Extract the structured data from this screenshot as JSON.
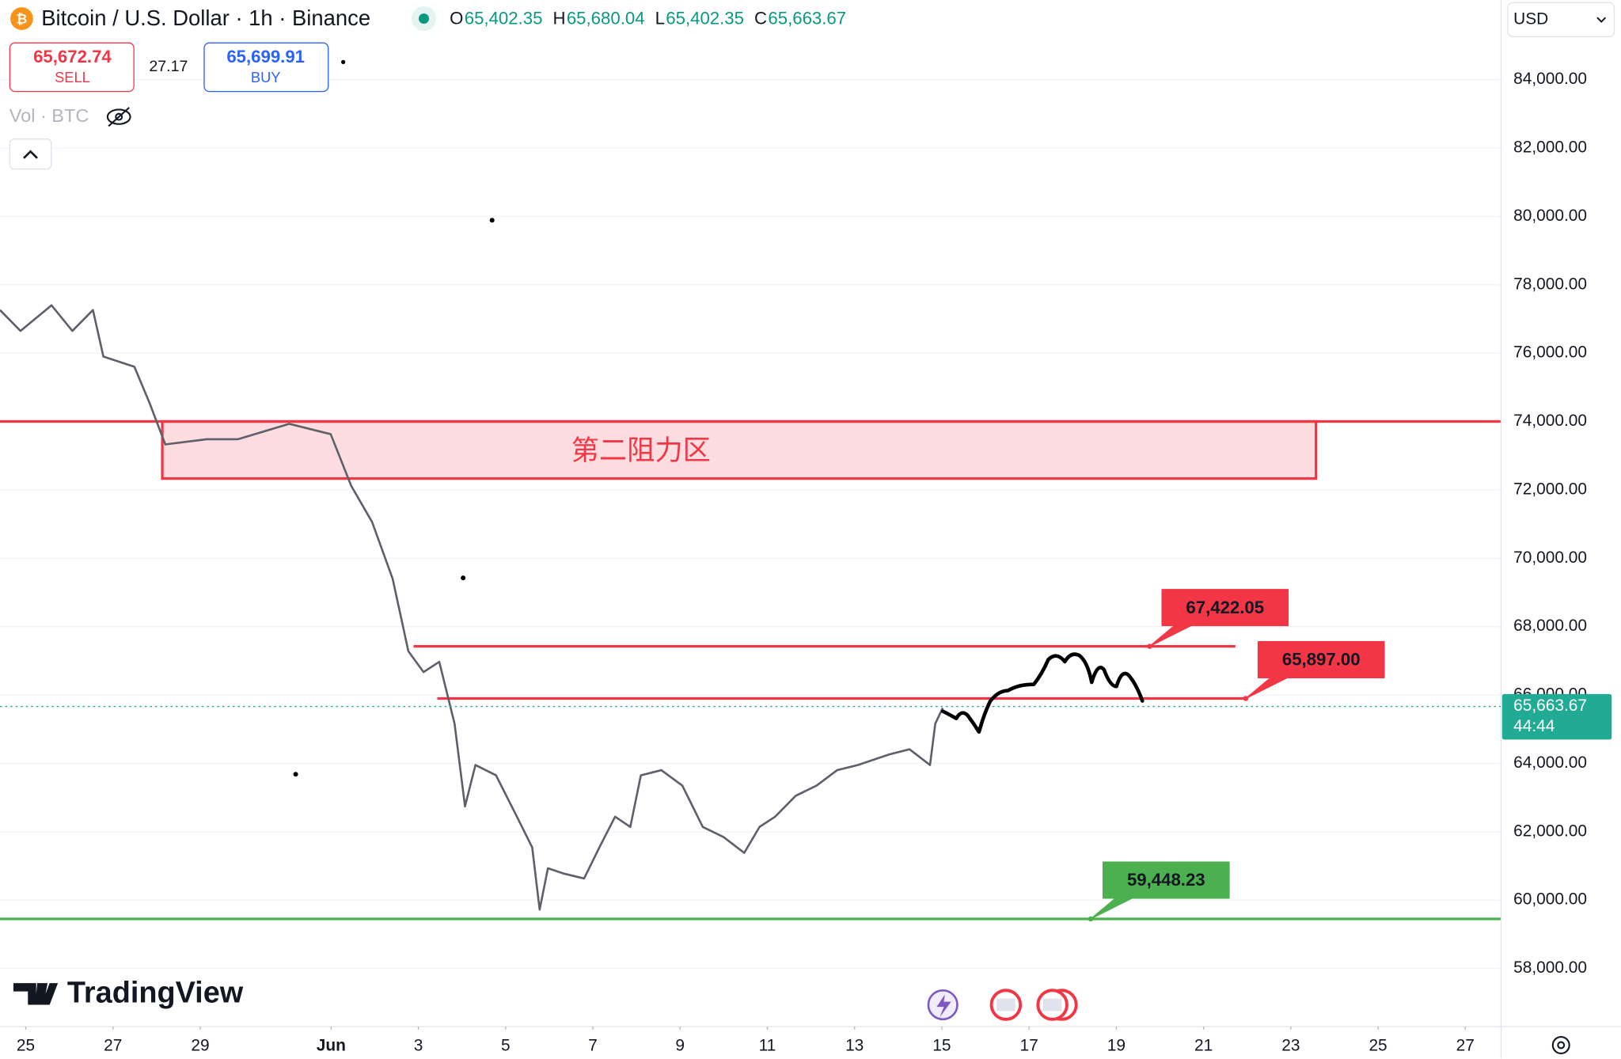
{
  "header": {
    "symbol": "Bitcoin / U.S. Dollar · 1h · Binance",
    "ohlc": [
      {
        "key": "O",
        "value": "65,402.35"
      },
      {
        "key": "H",
        "value": "65,680.04"
      },
      {
        "key": "L",
        "value": "65,402.35"
      },
      {
        "key": "C",
        "value": "65,663.67"
      }
    ],
    "sell_price": "65,672.74",
    "sell": "SELL",
    "spread": "27.17",
    "buy_price": "65,699.91",
    "buy": "BUY",
    "volume": "Vol · BTC",
    "currency": "USD",
    "brand": "TradingView"
  },
  "chart_data": {
    "type": "line",
    "series": [
      {
        "color": "#5d606b",
        "x": [
          -0.59,
          -0.12,
          0.59,
          1.07,
          1.54,
          1.78,
          2.49,
          2.84,
          3.2,
          4.15,
          4.86,
          6.04,
          6.99,
          7.46,
          7.94,
          8.41,
          8.77,
          9.12,
          9.48,
          9.83,
          10.07,
          10.31,
          10.78,
          11.26,
          11.61,
          11.78,
          11.97,
          12.32,
          12.8,
          13.15,
          13.51,
          13.86,
          14.1,
          14.57,
          15.05,
          15.52,
          16,
          16.47,
          16.82,
          17.18,
          17.65,
          18.13,
          18.6,
          19.08,
          19.79,
          20.26,
          20.73,
          20.85,
          21.02
        ],
        "values": [
          77260,
          76650,
          77400,
          76650,
          77260,
          75900,
          75600,
          74540,
          73330,
          73480,
          73480,
          73930,
          73630,
          72120,
          71060,
          69400,
          67280,
          66670,
          66970,
          65160,
          62740,
          63950,
          63650,
          62440,
          61540,
          59720,
          60930,
          60780,
          60630,
          61540,
          62440,
          62140,
          63650,
          63800,
          63350,
          62140,
          61840,
          61380,
          62140,
          62440,
          63050,
          63350,
          63800,
          63950,
          64260,
          64410,
          63950,
          65160,
          65620
        ]
      }
    ],
    "xlim": [
      -0.59,
      33.82
    ],
    "xticks": [
      {
        "value": 0,
        "label": "25"
      },
      {
        "value": 2,
        "label": "27"
      },
      {
        "value": 4,
        "label": "29"
      },
      {
        "value": 7,
        "label": "Jun"
      },
      {
        "value": 9,
        "label": "3"
      },
      {
        "value": 11,
        "label": "5"
      },
      {
        "value": 13,
        "label": "7"
      },
      {
        "value": 15,
        "label": "9"
      },
      {
        "value": 17,
        "label": "11"
      },
      {
        "value": 19,
        "label": "13"
      },
      {
        "value": 21,
        "label": "15"
      },
      {
        "value": 23,
        "label": "17"
      },
      {
        "value": 25,
        "label": "19"
      },
      {
        "value": 27,
        "label": "21"
      },
      {
        "value": 29,
        "label": "23"
      },
      {
        "value": 31,
        "label": "25"
      },
      {
        "value": 33,
        "label": "27"
      }
    ],
    "ylim": [
      56300,
      86330
    ],
    "yticks": [
      {
        "value": 58000,
        "label": "58,000.00"
      },
      {
        "value": 60000,
        "label": "60,000.00"
      },
      {
        "value": 62000,
        "label": "62,000.00"
      },
      {
        "value": 64000,
        "label": "64,000.00"
      },
      {
        "value": 66000,
        "label": "66,000.00"
      },
      {
        "value": 68000,
        "label": "68,000.00"
      },
      {
        "value": 70000,
        "label": "70,000.00"
      },
      {
        "value": 72000,
        "label": "72,000.00"
      },
      {
        "value": 74000,
        "label": "74,000.00"
      },
      {
        "value": 76000,
        "label": "76,000.00"
      },
      {
        "value": 78000,
        "label": "78,000.00"
      },
      {
        "value": 80000,
        "label": "80,000.00"
      },
      {
        "value": 82000,
        "label": "82,000.00"
      },
      {
        "value": 84000,
        "label": "84,000.00"
      }
    ],
    "grid": true,
    "zone": {
      "label": "第二阻力区",
      "top": 74000,
      "bottom": 72330,
      "color": "#f23645"
    },
    "price_lines": [
      {
        "value": 67422.05,
        "label": "67,422.05",
        "color": "#f23645"
      },
      {
        "value": 65897,
        "label": "65,897.00",
        "color": "#f23645"
      },
      {
        "value": 59448.23,
        "label": "59,448.23",
        "color": "#4caf50"
      }
    ],
    "last_price": {
      "value": 65663.67,
      "label": "65,663.67",
      "countdown": "44:44",
      "color": "#22ab94"
    }
  }
}
